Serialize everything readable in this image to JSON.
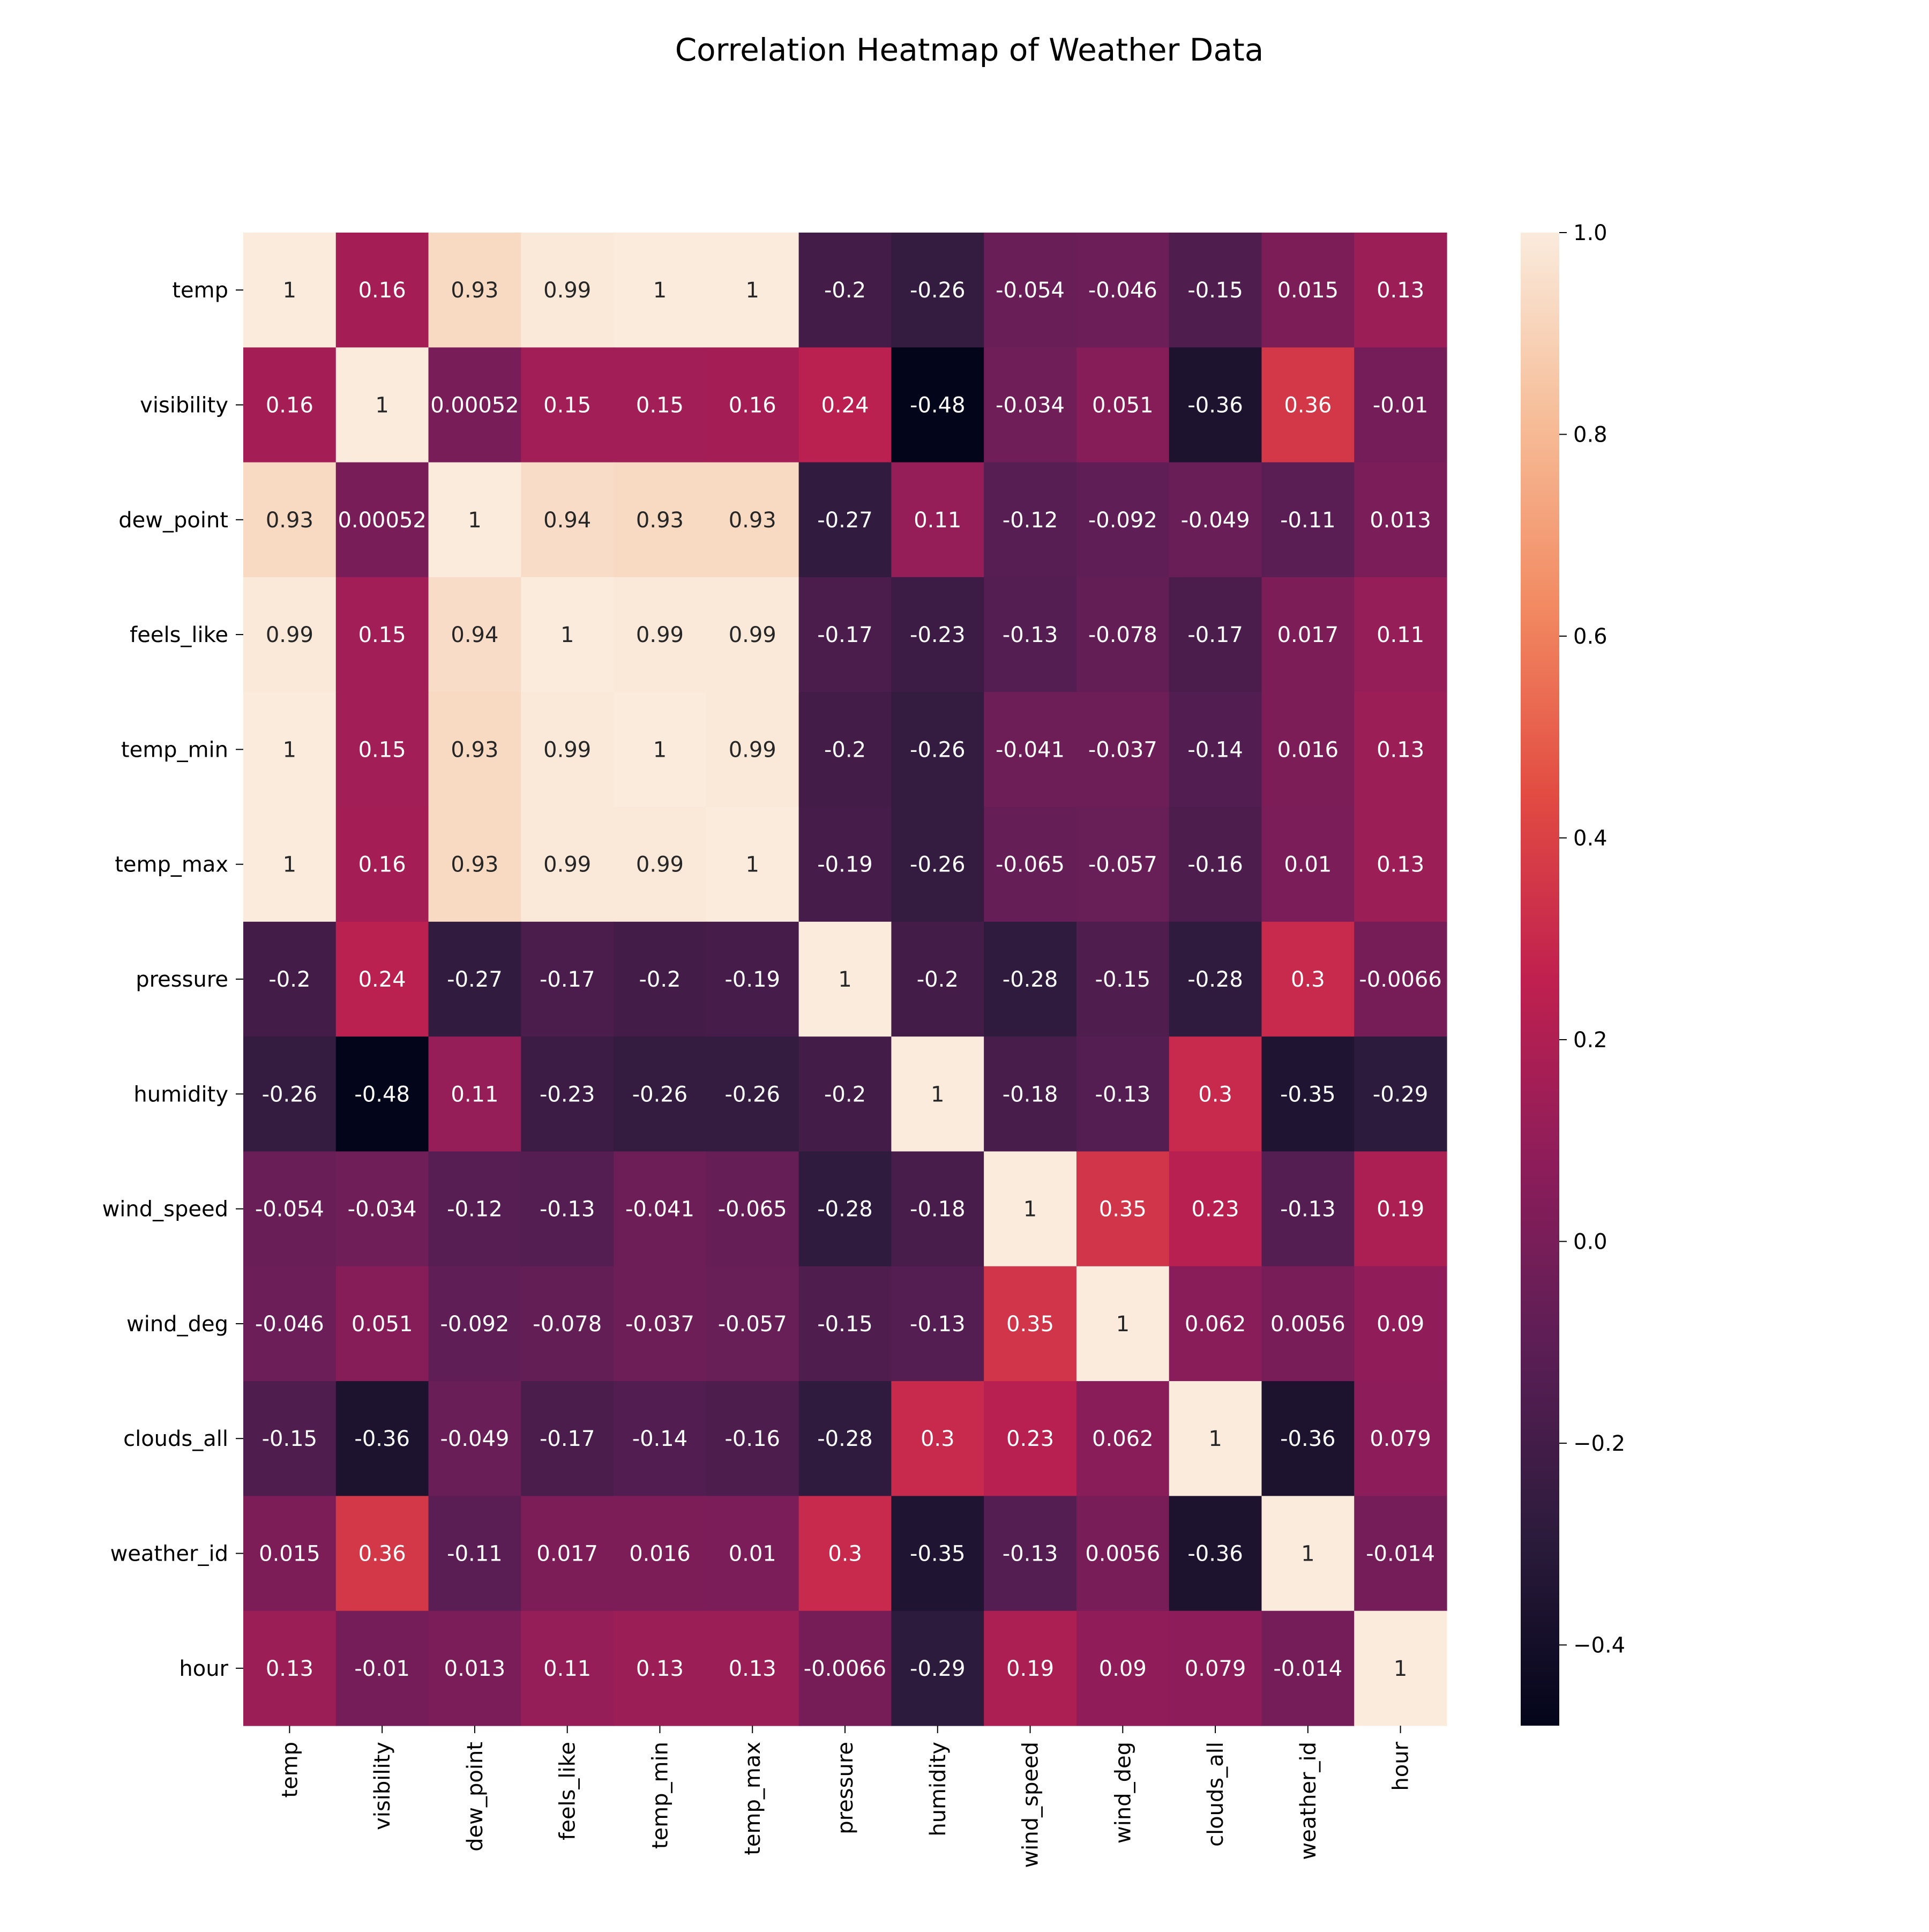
{
  "chart_data": {
    "type": "heatmap",
    "title": "Correlation Heatmap of Weather Data",
    "xlabel": "",
    "ylabel": "",
    "row_labels": [
      "temp",
      "visibility",
      "dew_point",
      "feels_like",
      "temp_min",
      "temp_max",
      "pressure",
      "humidity",
      "wind_speed",
      "wind_deg",
      "clouds_all",
      "weather_id",
      "hour"
    ],
    "col_labels": [
      "temp",
      "visibility",
      "dew_point",
      "feels_like",
      "temp_min",
      "temp_max",
      "pressure",
      "humidity",
      "wind_speed",
      "wind_deg",
      "clouds_all",
      "weather_id",
      "hour"
    ],
    "values": [
      [
        1,
        0.16,
        0.93,
        0.99,
        1,
        1,
        -0.2,
        -0.26,
        -0.054,
        -0.046,
        -0.15,
        0.015,
        0.13
      ],
      [
        0.16,
        1,
        0.00052,
        0.15,
        0.15,
        0.16,
        0.24,
        -0.48,
        -0.034,
        0.051,
        -0.36,
        0.36,
        -0.01
      ],
      [
        0.93,
        0.00052,
        1,
        0.94,
        0.93,
        0.93,
        -0.27,
        0.11,
        -0.12,
        -0.092,
        -0.049,
        -0.11,
        0.013
      ],
      [
        0.99,
        0.15,
        0.94,
        1,
        0.99,
        0.99,
        -0.17,
        -0.23,
        -0.13,
        -0.078,
        -0.17,
        0.017,
        0.11
      ],
      [
        1,
        0.15,
        0.93,
        0.99,
        1,
        0.99,
        -0.2,
        -0.26,
        -0.041,
        -0.037,
        -0.14,
        0.016,
        0.13
      ],
      [
        1,
        0.16,
        0.93,
        0.99,
        0.99,
        1,
        -0.19,
        -0.26,
        -0.065,
        -0.057,
        -0.16,
        0.01,
        0.13
      ],
      [
        -0.2,
        0.24,
        -0.27,
        -0.17,
        -0.2,
        -0.19,
        1,
        -0.2,
        -0.28,
        -0.15,
        -0.28,
        0.3,
        -0.0066
      ],
      [
        -0.26,
        -0.48,
        0.11,
        -0.23,
        -0.26,
        -0.26,
        -0.2,
        1,
        -0.18,
        -0.13,
        0.3,
        -0.35,
        -0.29
      ],
      [
        -0.054,
        -0.034,
        -0.12,
        -0.13,
        -0.041,
        -0.065,
        -0.28,
        -0.18,
        1,
        0.35,
        0.23,
        -0.13,
        0.19
      ],
      [
        -0.046,
        0.051,
        -0.092,
        -0.078,
        -0.037,
        -0.057,
        -0.15,
        -0.13,
        0.35,
        1,
        0.062,
        0.0056,
        0.09
      ],
      [
        -0.15,
        -0.36,
        -0.049,
        -0.17,
        -0.14,
        -0.16,
        -0.28,
        0.3,
        0.23,
        0.062,
        1,
        -0.36,
        0.079
      ],
      [
        0.015,
        0.36,
        -0.11,
        0.017,
        0.016,
        0.01,
        0.3,
        -0.35,
        -0.13,
        0.0056,
        -0.36,
        1,
        -0.014
      ],
      [
        0.13,
        -0.01,
        0.013,
        0.11,
        0.13,
        0.13,
        -0.0066,
        -0.29,
        0.19,
        0.09,
        0.079,
        -0.014,
        1
      ]
    ],
    "colorbar": {
      "range": [
        -0.48,
        1.0
      ],
      "ticks": [
        -0.4,
        -0.2,
        0.0,
        0.2,
        0.4,
        0.6,
        0.8,
        1.0
      ],
      "tick_labels": [
        "−0.4",
        "−0.2",
        "0.0",
        "0.2",
        "0.4",
        "0.6",
        "0.8",
        "1.0"
      ],
      "colormap": "rocket",
      "color_stops": [
        "#03051a",
        "#2b1b3b",
        "#5a1e55",
        "#8c1d5a",
        "#c0204f",
        "#e24c42",
        "#f28a62",
        "#f6bd98",
        "#faebdd"
      ]
    },
    "grid": false,
    "legend": "colorbar-right"
  }
}
